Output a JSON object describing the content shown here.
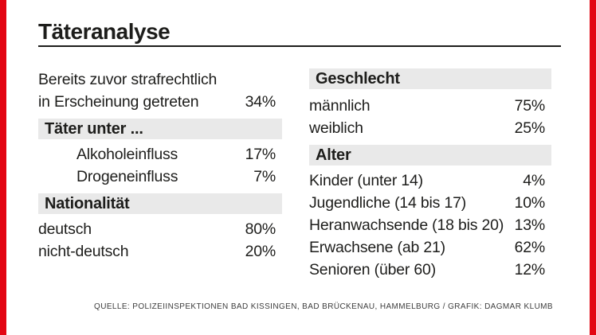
{
  "title": "Täteranalyse",
  "colors": {
    "accent_red": "#e30613",
    "banner_gray": "#e9e9e9",
    "text": "#1d1d1b",
    "source": "#3d3d3d"
  },
  "left_column": {
    "intro_line1": "Bereits zuvor strafrechtlich",
    "intro_line2": "in Erscheinung getreten",
    "intro_value": "34%",
    "banner1": "Täter unter ...",
    "items1": [
      {
        "label": "Alkoholeinfluss",
        "value": "17%"
      },
      {
        "label": "Drogeneinfluss",
        "value": "7%"
      }
    ],
    "banner2": "Nationalität",
    "items2": [
      {
        "label": "deutsch",
        "value": "80%"
      },
      {
        "label": "nicht-deutsch",
        "value": "20%"
      }
    ]
  },
  "right_column": {
    "banner1": "Geschlecht",
    "items1": [
      {
        "label": "männlich",
        "value": "75%"
      },
      {
        "label": "weiblich",
        "value": "25%"
      }
    ],
    "banner2": "Alter",
    "items2": [
      {
        "label": "Kinder (unter 14)",
        "value": "4%"
      },
      {
        "label": "Jugendliche (14 bis 17)",
        "value": "10%"
      },
      {
        "label": "Heranwachsende (18 bis 20)",
        "value": "13%"
      },
      {
        "label": "Erwachsene (ab 21)",
        "value": "62%"
      },
      {
        "label": "Senioren (über 60)",
        "value": "12%"
      }
    ]
  },
  "source_line": "QUELLE: POLIZEIINSPEKTIONEN BAD KISSINGEN, BAD BRÜCKENAU, HAMMELBURG / GRAFIK: DAGMAR KLUMB",
  "chart_data": {
    "type": "table",
    "title": "Täteranalyse",
    "unit": "percent",
    "sections": [
      {
        "header": null,
        "rows": [
          {
            "label": "Bereits zuvor strafrechtlich in Erscheinung getreten",
            "value": 34
          }
        ]
      },
      {
        "header": "Täter unter ...",
        "rows": [
          {
            "label": "Alkoholeinfluss",
            "value": 17
          },
          {
            "label": "Drogeneinfluss",
            "value": 7
          }
        ]
      },
      {
        "header": "Nationalität",
        "rows": [
          {
            "label": "deutsch",
            "value": 80
          },
          {
            "label": "nicht-deutsch",
            "value": 20
          }
        ]
      },
      {
        "header": "Geschlecht",
        "rows": [
          {
            "label": "männlich",
            "value": 75
          },
          {
            "label": "weiblich",
            "value": 25
          }
        ]
      },
      {
        "header": "Alter",
        "rows": [
          {
            "label": "Kinder (unter 14)",
            "value": 4
          },
          {
            "label": "Jugendliche (14 bis 17)",
            "value": 10
          },
          {
            "label": "Heranwachsende (18 bis 20)",
            "value": 13
          },
          {
            "label": "Erwachsene (ab 21)",
            "value": 62
          },
          {
            "label": "Senioren (über 60)",
            "value": 12
          }
        ]
      }
    ],
    "source": "QUELLE: POLIZEIINSPEKTIONEN BAD KISSINGEN, BAD BRÜCKENAU, HAMMELBURG / GRAFIK: DAGMAR KLUMB",
    "layout": {
      "columns": 2,
      "left_sections": [
        0,
        1,
        2
      ],
      "right_sections": [
        3,
        4
      ]
    }
  }
}
